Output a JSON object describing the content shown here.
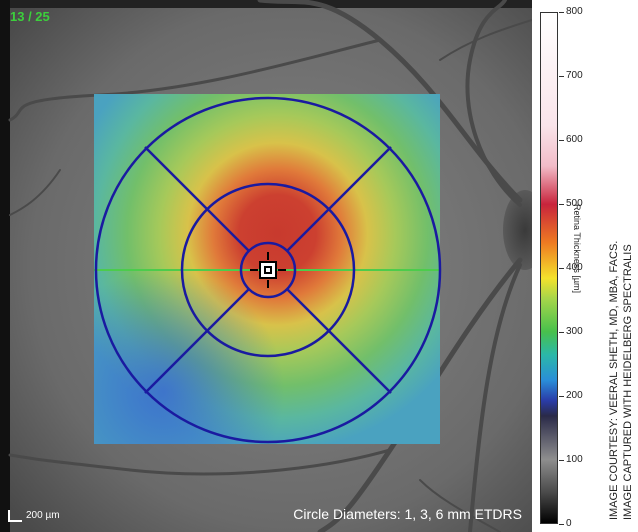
{
  "frame_counter": "13 / 25",
  "scale_bar_label": "200 µm",
  "circle_caption": "Circle Diameters: 1, 3, 6 mm ETDRS",
  "colorbar": {
    "title": "Retina Thickness [µm]",
    "ticks": [
      {
        "label": "800",
        "value": 800
      },
      {
        "label": "700",
        "value": 700
      },
      {
        "label": "600",
        "value": 600
      },
      {
        "label": "500",
        "value": 500
      },
      {
        "label": "400",
        "value": 400
      },
      {
        "label": "300",
        "value": 300
      },
      {
        "label": "200",
        "value": 200
      },
      {
        "label": "100",
        "value": 100
      },
      {
        "label": "0",
        "value": 0
      }
    ]
  },
  "credits": {
    "courtesy": "IMAGE COURTESY: VEERAL SHETH, MD, MBA, FACS.",
    "captured": "IMAGE CAPTURED WITH HEIDELBERG SPECTRALIS"
  },
  "colors": {
    "etdrs_grid": "#1a1aa0",
    "horizontal_line": "#4ccc4c",
    "frame_counter": "#3ccf3c"
  }
}
